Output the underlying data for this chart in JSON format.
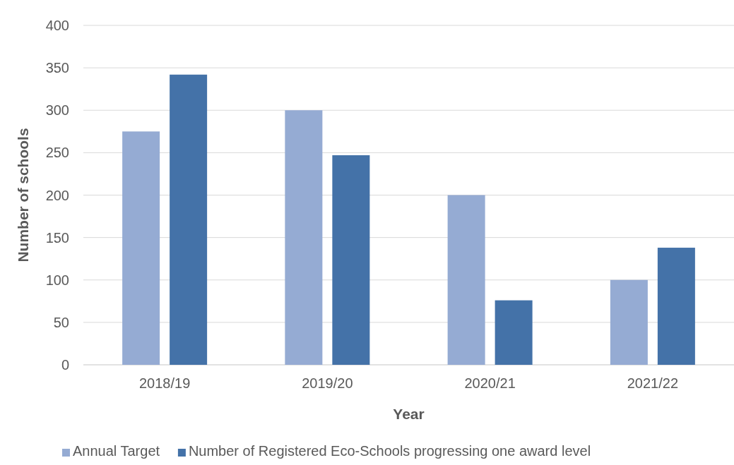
{
  "chart_data": {
    "type": "bar",
    "xlabel": "Year",
    "ylabel": "Number of schools",
    "categories": [
      "2018/19",
      "2019/20",
      "2020/21",
      "2021/22"
    ],
    "series": [
      {
        "name": "Annual Target",
        "color": "#95abd3",
        "values": [
          275,
          300,
          200,
          100
        ]
      },
      {
        "name": "Number of Registered Eco-Schools progressing one award level",
        "color": "#4472a8",
        "values": [
          342,
          247,
          76,
          138
        ]
      }
    ],
    "ylim": [
      0,
      400
    ],
    "yticks": [
      0,
      50,
      100,
      150,
      200,
      250,
      300,
      350,
      400
    ],
    "grid": "y",
    "legend": "bottom"
  }
}
